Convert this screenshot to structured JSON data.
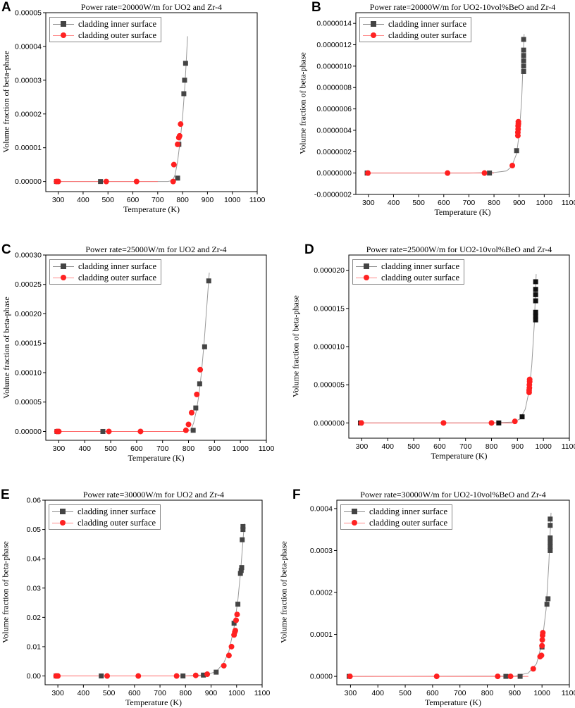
{
  "chart_data": [
    {
      "id": "A",
      "type": "scatter",
      "title": "Power rate=20000W/m for UO2 and Zr-4",
      "xlabel": "Temperature (K)",
      "ylabel": "Volume fraction of beta-phase",
      "xlim": [
        250,
        1100
      ],
      "ylim": [
        -3e-06,
        5e-05
      ],
      "xticks": [
        "300",
        "400",
        "500",
        "600",
        "700",
        "800",
        "900",
        "1000",
        "1100"
      ],
      "xtick_values": [
        300,
        400,
        500,
        600,
        700,
        800,
        900,
        1000,
        1100
      ],
      "yticks": [
        "0.00000",
        "0.00001",
        "0.00002",
        "0.00003",
        "0.00004",
        "0.00005"
      ],
      "ytick_values": [
        0,
        1e-05,
        2e-05,
        3e-05,
        4e-05,
        5e-05
      ],
      "legend": [
        "cladding inner surface",
        "cladding outer surface"
      ],
      "series": [
        {
          "name": "cladding inner surface",
          "marker": "square",
          "color": "#444444",
          "x": [
            293,
            470,
            780,
            785,
            805,
            808,
            812
          ],
          "y": [
            0,
            0,
            1e-06,
            1.1e-05,
            2.6e-05,
            3e-05,
            3.5e-05
          ]
        },
        {
          "name": "cladding outer surface",
          "marker": "circle",
          "color": "#ff2020",
          "x": [
            293,
            300,
            493,
            615,
            762,
            765,
            780,
            785,
            788,
            792
          ],
          "y": [
            0,
            0,
            0,
            0,
            0,
            5e-06,
            1.1e-05,
            1.3e-05,
            1.35e-05,
            1.7e-05
          ]
        }
      ],
      "fit_curve": {
        "color": "#999999",
        "x": [
          290,
          500,
          700,
          740,
          760,
          770,
          780,
          790,
          800,
          810,
          820
        ],
        "y": [
          0,
          0,
          0,
          0,
          3e-07,
          2e-06,
          6e-06,
          1.2e-05,
          1.9e-05,
          2.9e-05,
          4.3e-05
        ]
      }
    },
    {
      "id": "B",
      "type": "scatter",
      "title": "Power rate=20000W/m for UO2-10vol%BeO and Zr-4",
      "xlabel": "Temperature (K)",
      "ylabel": "Volume fraction of beta-phase",
      "xlim": [
        250,
        1100
      ],
      "ylim": [
        -2e-07,
        1.5e-06
      ],
      "xticks": [
        "300",
        "400",
        "500",
        "600",
        "700",
        "800",
        "900",
        "1000",
        "1100"
      ],
      "xtick_values": [
        300,
        400,
        500,
        600,
        700,
        800,
        900,
        1000,
        1100
      ],
      "yticks": [
        "-0.0000002",
        "0.0000000",
        "0.0000002",
        "0.0000004",
        "0.0000006",
        "0.0000008",
        "0.0000010",
        "0.0000012",
        "0.0000014"
      ],
      "ytick_values": [
        -2e-07,
        0,
        2e-07,
        4e-07,
        6e-07,
        8e-07,
        1e-06,
        1.2e-06,
        1.4e-06
      ],
      "legend": [
        "cladding inner surface",
        "cladding outer surface"
      ],
      "series": [
        {
          "name": "cladding inner surface",
          "marker": "square",
          "color": "#444444",
          "x": [
            295,
            782,
            890,
            918,
            918,
            918,
            918,
            918,
            918
          ],
          "y": [
            0,
            0,
            2.1e-07,
            9.5e-07,
            1e-06,
            1.05e-06,
            1.1e-06,
            1.15e-06,
            1.25e-06
          ]
        },
        {
          "name": "cladding outer surface",
          "marker": "circle",
          "color": "#ff2020",
          "x": [
            298,
            615,
            762,
            873,
            895,
            895,
            896,
            896,
            897,
            897
          ],
          "y": [
            0,
            0,
            0,
            7e-08,
            3.5e-07,
            3.8e-07,
            4.1e-07,
            4.4e-07,
            4.6e-07,
            4.8e-07
          ]
        }
      ],
      "fit_curve": {
        "color": "#999999",
        "x": [
          290,
          700,
          800,
          850,
          870,
          890,
          900,
          910,
          920
        ],
        "y": [
          0,
          0,
          5e-09,
          2e-08,
          6e-08,
          1.8e-07,
          3.6e-07,
          6.8e-07,
          1.3e-06
        ]
      }
    },
    {
      "id": "C",
      "type": "scatter",
      "title": "Power rate=25000W/m for UO2 and Zr-4",
      "xlabel": "Temperature (K)",
      "ylabel": "Volume fraction of beta-phase",
      "xlim": [
        250,
        1100
      ],
      "ylim": [
        -1.5e-05,
        0.0003
      ],
      "xticks": [
        "300",
        "400",
        "500",
        "600",
        "700",
        "800",
        "900",
        "1000",
        "1100"
      ],
      "xtick_values": [
        300,
        400,
        500,
        600,
        700,
        800,
        900,
        1000,
        1100
      ],
      "yticks": [
        "0.00000",
        "0.00005",
        "0.00010",
        "0.00015",
        "0.00020",
        "0.00025",
        "0.00030"
      ],
      "ytick_values": [
        0,
        5e-05,
        0.0001,
        0.00015,
        0.0002,
        0.00025,
        0.0003
      ],
      "legend": [
        "cladding inner surface",
        "cladding outer surface"
      ],
      "series": [
        {
          "name": "cladding inner surface",
          "marker": "square",
          "color": "#444444",
          "x": [
            293,
            470,
            818,
            828,
            843,
            862,
            878
          ],
          "y": [
            0,
            0,
            2e-06,
            4e-05,
            8.1e-05,
            0.000144,
            0.000256
          ]
        },
        {
          "name": "cladding outer surface",
          "marker": "circle",
          "color": "#ff2020",
          "x": [
            293,
            300,
            493,
            615,
            790,
            800,
            812,
            832,
            845
          ],
          "y": [
            0,
            0,
            0,
            0,
            2e-06,
            1.2e-05,
            3.2e-05,
            6.3e-05,
            0.000105
          ]
        }
      ],
      "fit_curve": {
        "color": "#999999",
        "x": [
          290,
          700,
          790,
          810,
          820,
          830,
          840,
          850,
          860,
          870,
          880
        ],
        "y": [
          0,
          0,
          0,
          3e-06,
          1.5e-05,
          3.5e-05,
          6.2e-05,
          0.0001,
          0.00015,
          0.00021,
          0.00027
        ]
      }
    },
    {
      "id": "D",
      "type": "scatter",
      "title": "Power rate=25000W/m for UO2-10vol%BeO and Zr-4",
      "xlabel": "Temperature (K)",
      "ylabel": "Volume fraction of beta-phase",
      "xlim": [
        250,
        1100
      ],
      "ylim": [
        -2e-06,
        2.2e-05
      ],
      "xticks": [
        "300",
        "400",
        "500",
        "600",
        "700",
        "800",
        "900",
        "1000",
        "1100"
      ],
      "xtick_values": [
        300,
        400,
        500,
        600,
        700,
        800,
        900,
        1000,
        1100
      ],
      "yticks": [
        "0.000000",
        "0.000005",
        "0.000010",
        "0.000015",
        "0.000020"
      ],
      "ytick_values": [
        0,
        5e-06,
        1e-05,
        1.5e-05,
        2e-05
      ],
      "legend": [
        "cladding inner surface",
        "cladding outer surface"
      ],
      "series": [
        {
          "name": "cladding inner surface",
          "marker": "square",
          "color": "#111111",
          "x": [
            295,
            828,
            918,
            970,
            970,
            970,
            970,
            970,
            970,
            970
          ],
          "y": [
            0,
            0,
            8e-07,
            1.35e-05,
            1.4e-05,
            1.45e-05,
            1.6e-05,
            1.68e-05,
            1.75e-05,
            1.85e-05
          ]
        },
        {
          "name": "cladding outer surface",
          "marker": "circle",
          "color": "#ff2020",
          "x": [
            298,
            615,
            800,
            890,
            945,
            945,
            946,
            946,
            947,
            947
          ],
          "y": [
            0,
            0,
            0,
            2e-07,
            4e-06,
            4.3e-06,
            4.6e-06,
            5e-06,
            5.4e-06,
            5.7e-06
          ]
        }
      ],
      "fit_curve": {
        "color": "#999999",
        "x": [
          290,
          800,
          880,
          910,
          930,
          945,
          955,
          965,
          972
        ],
        "y": [
          0,
          0,
          1e-07,
          5e-07,
          1.8e-06,
          4.2e-06,
          7.5e-06,
          1.3e-05,
          1.95e-05
        ]
      }
    },
    {
      "id": "E",
      "type": "scatter",
      "title": "Power rate=30000W/m for UO2 and Zr-4",
      "xlabel": "Temperature (K)",
      "ylabel": "Volume fraction of beta-phase",
      "xlim": [
        250,
        1100
      ],
      "ylim": [
        -0.003,
        0.06
      ],
      "xticks": [
        "300",
        "400",
        "500",
        "600",
        "700",
        "800",
        "900",
        "1000",
        "1100"
      ],
      "xtick_values": [
        300,
        400,
        500,
        600,
        700,
        800,
        900,
        1000,
        1100
      ],
      "yticks": [
        "0.00",
        "0.01",
        "0.02",
        "0.03",
        "0.04",
        "0.05",
        "0.06"
      ],
      "ytick_values": [
        0,
        0.01,
        0.02,
        0.03,
        0.04,
        0.05,
        0.06
      ],
      "legend": [
        "cladding inner surface",
        "cladding outer surface"
      ],
      "series": [
        {
          "name": "cladding inner surface",
          "marker": "square",
          "color": "#444444",
          "x": [
            293,
            470,
            790,
            870,
            920,
            990,
            1005,
            1015,
            1018,
            1020,
            1022,
            1025,
            1025
          ],
          "y": [
            0,
            0,
            0,
            0.0003,
            0.0013,
            0.018,
            0.0245,
            0.035,
            0.036,
            0.037,
            0.0465,
            0.05,
            0.051
          ]
        },
        {
          "name": "cladding outer surface",
          "marker": "circle",
          "color": "#ff2020",
          "x": [
            293,
            300,
            493,
            615,
            765,
            840,
            885,
            950,
            970,
            980,
            990,
            993,
            995,
            998,
            1002
          ],
          "y": [
            0,
            0,
            0,
            0,
            0,
            0.0002,
            0.0006,
            0.0035,
            0.007,
            0.01,
            0.014,
            0.015,
            0.0155,
            0.019,
            0.021
          ]
        }
      ],
      "fit_curve": {
        "color": "#999999",
        "x": [
          290,
          800,
          880,
          920,
          950,
          970,
          990,
          1005,
          1015,
          1025,
          1030
        ],
        "y": [
          0,
          0,
          0.0004,
          0.0015,
          0.0045,
          0.0085,
          0.0165,
          0.026,
          0.035,
          0.046,
          0.052
        ]
      }
    },
    {
      "id": "F",
      "type": "scatter",
      "title": "Power rate=30000W/m for UO2-10vol%BeO and Zr-4",
      "xlabel": "Temperature (K)",
      "ylabel": "Volume fraction of beta-phase",
      "xlim": [
        250,
        1100
      ],
      "ylim": [
        -2e-05,
        0.00042
      ],
      "xticks": [
        "300",
        "400",
        "500",
        "600",
        "700",
        "800",
        "900",
        "1000",
        "1100"
      ],
      "xtick_values": [
        300,
        400,
        500,
        600,
        700,
        800,
        900,
        1000,
        1100
      ],
      "yticks": [
        "0.0000",
        "0.0001",
        "0.0002",
        "0.0003",
        "0.0004"
      ],
      "ytick_values": [
        0,
        0.0001,
        0.0002,
        0.0003,
        0.0004
      ],
      "legend": [
        "cladding inner surface",
        "cladding outer surface"
      ],
      "series": [
        {
          "name": "cladding inner surface",
          "marker": "square",
          "color": "#444444",
          "x": [
            295,
            868,
            920,
            1000,
            1018,
            1022,
            1030,
            1030,
            1030,
            1030,
            1030,
            1030
          ],
          "y": [
            0,
            0,
            0,
            7e-05,
            0.000172,
            0.000185,
            0.0003,
            0.00031,
            0.00032,
            0.00033,
            0.00036,
            0.000375
          ]
        },
        {
          "name": "cladding outer surface",
          "marker": "circle",
          "color": "#ff2020",
          "x": [
            298,
            615,
            838,
            885,
            968,
            993,
            998,
            1000,
            1001,
            1002,
            1003
          ],
          "y": [
            0,
            0,
            0,
            0,
            1.8e-05,
            4.7e-05,
            5e-05,
            7.3e-05,
            8.7e-05,
            9.8e-05,
            0.000104
          ]
        }
      ],
      "fit_curve": {
        "color": "#999999",
        "x": [
          290,
          900,
          950,
          980,
          1000,
          1015,
          1025,
          1033
        ],
        "y": [
          0,
          5e-07,
          8e-06,
          3e-05,
          8e-05,
          0.00016,
          0.00027,
          0.00039
        ]
      }
    }
  ]
}
